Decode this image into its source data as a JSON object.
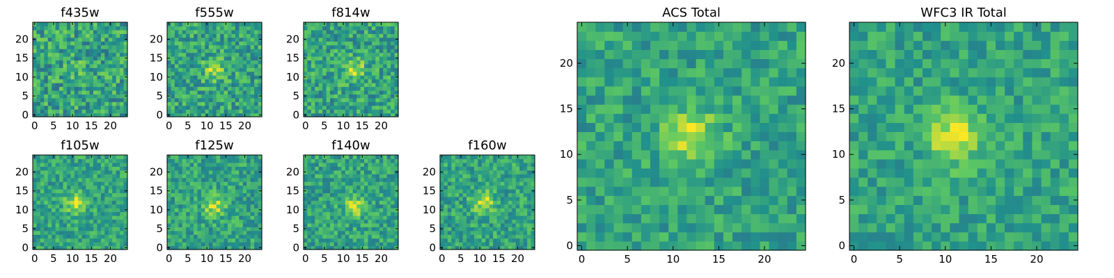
{
  "colormap": [
    "#440154",
    "#3b528b",
    "#21918c",
    "#5ec962",
    "#fde725"
  ],
  "chart_data": [
    {
      "type": "heatmap",
      "title": "f435w",
      "grid_size": 25,
      "xticks": [
        0,
        5,
        10,
        15,
        20
      ],
      "yticks": [
        0,
        5,
        10,
        15,
        20
      ],
      "xlim": [
        0,
        25
      ],
      "ylim": [
        0,
        25
      ],
      "source_center": [
        12,
        12
      ],
      "source_strength": 0.08,
      "noise": 0.22,
      "seed": 11
    },
    {
      "type": "heatmap",
      "title": "f555w",
      "grid_size": 25,
      "xticks": [
        0,
        5,
        10,
        15,
        20
      ],
      "yticks": [
        0,
        5,
        10,
        15,
        20
      ],
      "xlim": [
        0,
        25
      ],
      "ylim": [
        0,
        25
      ],
      "source_center": [
        12,
        12
      ],
      "source_strength": 0.3,
      "noise": 0.2,
      "seed": 23
    },
    {
      "type": "heatmap",
      "title": "f814w",
      "grid_size": 25,
      "xticks": [
        0,
        5,
        10,
        15,
        20
      ],
      "yticks": [
        0,
        5,
        10,
        15,
        20
      ],
      "xlim": [
        0,
        25
      ],
      "ylim": [
        0,
        25
      ],
      "source_center": [
        13,
        12
      ],
      "source_strength": 0.28,
      "noise": 0.2,
      "seed": 37
    },
    {
      "type": "heatmap",
      "title": "f105w",
      "grid_size": 25,
      "xticks": [
        0,
        5,
        10,
        15,
        20
      ],
      "yticks": [
        0,
        5,
        10,
        15,
        20
      ],
      "xlim": [
        0,
        25
      ],
      "ylim": [
        0,
        25
      ],
      "source_center": [
        11,
        12
      ],
      "source_strength": 0.32,
      "noise": 0.16,
      "seed": 41
    },
    {
      "type": "heatmap",
      "title": "f125w",
      "grid_size": 25,
      "xticks": [
        0,
        5,
        10,
        15,
        20
      ],
      "yticks": [
        0,
        5,
        10,
        15,
        20
      ],
      "xlim": [
        0,
        25
      ],
      "ylim": [
        0,
        25
      ],
      "source_center": [
        12,
        11
      ],
      "source_strength": 0.3,
      "noise": 0.17,
      "seed": 53
    },
    {
      "type": "heatmap",
      "title": "f140w",
      "grid_size": 25,
      "xticks": [
        0,
        5,
        10,
        15,
        20
      ],
      "yticks": [
        0,
        5,
        10,
        15,
        20
      ],
      "xlim": [
        0,
        25
      ],
      "ylim": [
        0,
        25
      ],
      "source_center": [
        13,
        11
      ],
      "source_strength": 0.3,
      "noise": 0.17,
      "seed": 67
    },
    {
      "type": "heatmap",
      "title": "f160w",
      "grid_size": 25,
      "xticks": [
        0,
        5,
        10,
        15,
        20
      ],
      "yticks": [
        0,
        5,
        10,
        15,
        20
      ],
      "xlim": [
        0,
        25
      ],
      "ylim": [
        0,
        25
      ],
      "source_center": [
        11,
        12
      ],
      "source_strength": 0.32,
      "noise": 0.17,
      "seed": 79
    },
    {
      "type": "heatmap",
      "title": "ACS Total",
      "grid_size": 25,
      "xticks": [
        0,
        5,
        10,
        15,
        20
      ],
      "yticks": [
        0,
        5,
        10,
        15,
        20
      ],
      "xlim": [
        0,
        25
      ],
      "ylim": [
        0,
        25
      ],
      "source_center": [
        12,
        12
      ],
      "source_strength": 0.38,
      "noise": 0.15,
      "seed": 83
    },
    {
      "type": "heatmap",
      "title": "WFC3 IR Total",
      "grid_size": 25,
      "xticks": [
        0,
        5,
        10,
        15,
        20
      ],
      "yticks": [
        0,
        5,
        10,
        15,
        20
      ],
      "xlim": [
        0,
        25
      ],
      "ylim": [
        0,
        25
      ],
      "source_center": [
        11,
        12
      ],
      "source_strength": 0.4,
      "noise": 0.14,
      "seed": 97
    }
  ]
}
